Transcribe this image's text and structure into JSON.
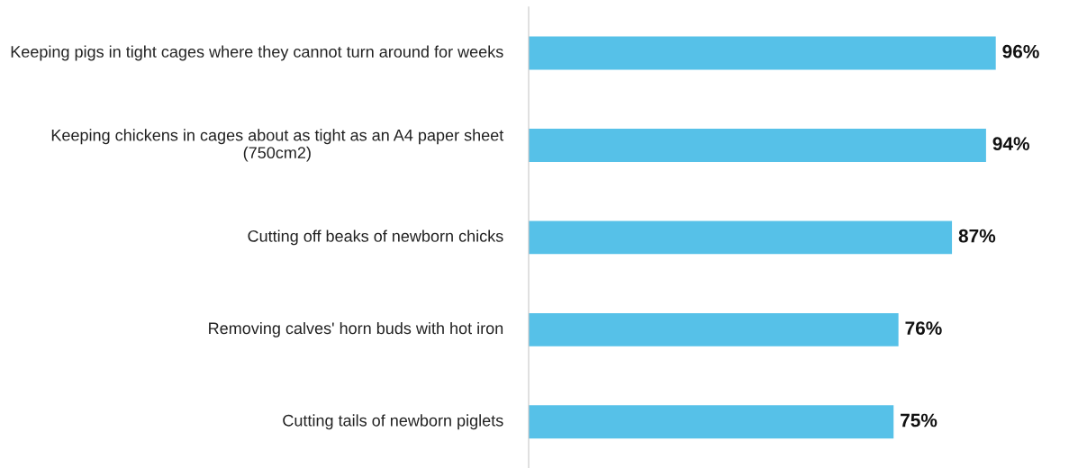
{
  "chart_data": {
    "type": "bar",
    "orientation": "horizontal",
    "categories": [
      "Keeping pigs in tight cages where they cannot turn around for weeks",
      "Keeping chickens in cages about as tight as an A4 paper sheet (750cm2)",
      "Cutting off beaks of newborn chicks",
      "Removing calves' horn buds with hot iron",
      "Cutting tails of newborn piglets"
    ],
    "values": [
      96,
      94,
      87,
      76,
      75
    ],
    "value_labels": [
      "96%",
      "94%",
      "87%",
      "76%",
      "75%"
    ],
    "color": "#56c1e8",
    "grid": false,
    "legend": false
  }
}
